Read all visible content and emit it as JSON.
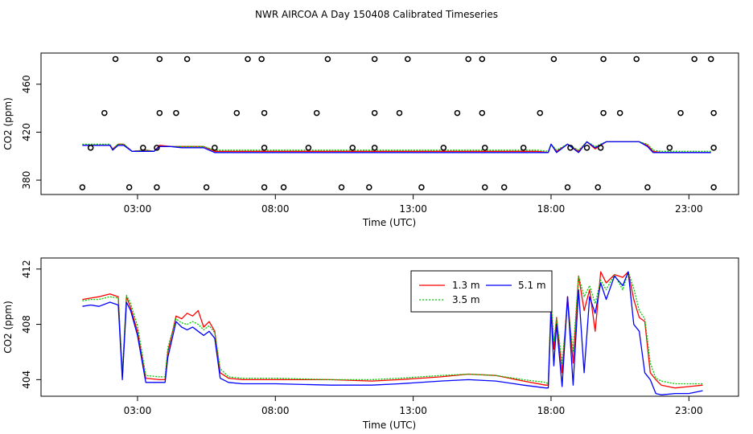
{
  "title": "NWR AIRCOA A  Day 150408  Calibrated Timeseries",
  "colors": {
    "red": "#ff0000",
    "green": "#00cc00",
    "blue": "#0000ff",
    "black": "#000000"
  },
  "chart_data": [
    {
      "type": "line",
      "title": "NWR AIRCOA A  Day 150408  Calibrated Timeseries",
      "xlabel": "Time (UTC)",
      "ylabel": "CO2 (ppm)",
      "xlim": [
        -0.5,
        24.8
      ],
      "ylim": [
        368,
        486
      ],
      "x_ticks": [
        3,
        8,
        13,
        18,
        23
      ],
      "x_tick_labels": [
        "03:00",
        "08:00",
        "13:00",
        "18:00",
        "23:00"
      ],
      "y_ticks": [
        380,
        420,
        460
      ],
      "y_tick_labels": [
        "380",
        "420",
        "460"
      ],
      "series": [
        {
          "color": "#ff0000",
          "x": [
            1,
            1.5,
            2,
            2.1,
            2.3,
            2.5,
            2.8,
            3.3,
            3.6,
            3.8,
            4.2,
            4.6,
            5,
            5.4,
            5.8,
            6.5,
            8,
            10,
            12,
            14,
            16,
            17.5,
            17.9,
            18,
            18.2,
            18.6,
            19,
            19.3,
            19.6,
            20,
            20.4,
            20.8,
            21.2,
            21.5,
            21.7,
            22,
            23.8
          ],
          "y": [
            409,
            409,
            409,
            406,
            410,
            410,
            404,
            405,
            404,
            409,
            408,
            408,
            408,
            408,
            404,
            404,
            404,
            404,
            404,
            404,
            404,
            404,
            403,
            410,
            404,
            410,
            404,
            412,
            406,
            412,
            412,
            412,
            412,
            409,
            404,
            403,
            403
          ]
        },
        {
          "color": "#00cc00",
          "x": [
            1,
            1.5,
            2,
            2.1,
            2.3,
            2.5,
            2.8,
            3.3,
            3.6,
            3.8,
            4.2,
            4.6,
            5,
            5.4,
            5.8,
            6.5,
            8,
            10,
            12,
            14,
            16,
            17.5,
            17.9,
            18,
            18.2,
            18.6,
            19,
            19.3,
            19.6,
            20,
            20.4,
            20.8,
            21.2,
            21.5,
            21.7,
            22,
            23.8
          ],
          "y": [
            410,
            410,
            410,
            406,
            410,
            410,
            404,
            405,
            404,
            408,
            408,
            408,
            408,
            408,
            405,
            405,
            405,
            405,
            405,
            405,
            405,
            405,
            404,
            410,
            405,
            410,
            405,
            412,
            408,
            412,
            412,
            412,
            412,
            410,
            405,
            404,
            404
          ]
        },
        {
          "color": "#0000ff",
          "x": [
            1,
            1.5,
            2,
            2.1,
            2.3,
            2.5,
            2.8,
            3.3,
            3.6,
            3.8,
            4.2,
            4.6,
            5,
            5.4,
            5.8,
            6.5,
            8,
            10,
            12,
            14,
            16,
            17.5,
            17.9,
            18,
            18.2,
            18.6,
            19,
            19.3,
            19.6,
            20,
            20.4,
            20.8,
            21.2,
            21.5,
            21.7,
            22,
            23.8
          ],
          "y": [
            409,
            409,
            409,
            405,
            409,
            409,
            404,
            404,
            404,
            408,
            408,
            407,
            407,
            407,
            403,
            403,
            403,
            403,
            403,
            403,
            403,
            403,
            403,
            410,
            403,
            410,
            403,
            412,
            407,
            412,
            412,
            412,
            412,
            408,
            403,
            403,
            403
          ]
        }
      ],
      "points": [
        {
          "x": [
            2.2,
            3.8,
            4.8,
            7,
            7.5,
            9.9,
            11.6,
            12.8,
            15,
            15.5,
            18.1,
            19.9,
            21.1,
            23.2,
            23.8
          ],
          "y": [
            481,
            481,
            481,
            481,
            481,
            481,
            481,
            481,
            481,
            481,
            481,
            481,
            481,
            481,
            481
          ]
        },
        {
          "x": [
            1.8,
            3.8,
            4.4,
            6.6,
            7.6,
            9.5,
            11.6,
            12.5,
            14.6,
            15.5,
            17.6,
            19.9,
            20.5,
            22.7,
            23.9
          ],
          "y": [
            436,
            436,
            436,
            436,
            436,
            436,
            436,
            436,
            436,
            436,
            436,
            436,
            436,
            436,
            436
          ]
        },
        {
          "x": [
            1.3,
            3.2,
            3.7,
            5.8,
            7.6,
            9.2,
            10.8,
            11.6,
            14.1,
            15.6,
            17,
            18.7,
            19.3,
            19.8,
            22.3,
            23.9
          ],
          "y": [
            407,
            407,
            407,
            407,
            407,
            407,
            407,
            407,
            407,
            407,
            407,
            407,
            407,
            407,
            407,
            407
          ]
        },
        {
          "x": [
            1,
            2.7,
            3.7,
            5.5,
            7.6,
            8.3,
            10.4,
            11.4,
            13.3,
            15.6,
            16.3,
            18.6,
            19.7,
            21.5,
            23.9
          ],
          "y": [
            374,
            374,
            374,
            374,
            374,
            374,
            374,
            374,
            374,
            374,
            374,
            374,
            374,
            374,
            374
          ]
        }
      ]
    },
    {
      "type": "line",
      "title": "",
      "xlabel": "Time (UTC)",
      "ylabel": "CO2 (ppm)",
      "xlim": [
        -0.5,
        24.8
      ],
      "ylim": [
        402.8,
        412.8
      ],
      "x_ticks": [
        3,
        8,
        13,
        18,
        23
      ],
      "x_tick_labels": [
        "03:00",
        "08:00",
        "13:00",
        "18:00",
        "23:00"
      ],
      "y_ticks": [
        404,
        408,
        412
      ],
      "y_tick_labels": [
        "404",
        "408",
        "412"
      ],
      "legend_position": "top-right",
      "series": [
        {
          "name": "1.3 m",
          "color": "#ff0000",
          "x": [
            1,
            1.3,
            1.6,
            2,
            2.3,
            2.45,
            2.6,
            2.75,
            3,
            3.3,
            3.8,
            4,
            4.1,
            4.4,
            4.6,
            4.8,
            5,
            5.2,
            5.4,
            5.6,
            5.8,
            6,
            6.3,
            6.8,
            8,
            10,
            11.5,
            12.5,
            14,
            15,
            16,
            17,
            17.8,
            17.9,
            18,
            18.1,
            18.2,
            18.4,
            18.6,
            18.8,
            19,
            19.2,
            19.4,
            19.6,
            19.8,
            20,
            20.3,
            20.6,
            20.8,
            21,
            21.2,
            21.4,
            21.6,
            21.8,
            22,
            22.5,
            23,
            23.5
          ],
          "y": [
            409.8,
            409.9,
            410.0,
            410.2,
            410.0,
            404.2,
            410.0,
            409.2,
            407.5,
            404.1,
            404.0,
            404.0,
            406.0,
            408.6,
            408.4,
            408.8,
            408.6,
            409.0,
            407.8,
            408.2,
            407.5,
            404.5,
            404.1,
            404.0,
            404.0,
            404.0,
            403.9,
            404.0,
            404.2,
            404.4,
            404.3,
            403.9,
            403.6,
            403.6,
            409.5,
            406.2,
            408.5,
            404.5,
            410.0,
            405.2,
            411.5,
            409.0,
            410.5,
            407.5,
            411.8,
            411.0,
            411.6,
            411.4,
            411.8,
            409.8,
            408.5,
            408.2,
            404.5,
            404.0,
            403.6,
            403.4,
            403.5,
            403.6
          ]
        },
        {
          "name": "3.5 m",
          "color": "#00cc00",
          "x": [
            1,
            1.3,
            1.6,
            2,
            2.3,
            2.45,
            2.6,
            2.75,
            3,
            3.3,
            3.8,
            4,
            4.1,
            4.4,
            4.6,
            4.8,
            5,
            5.2,
            5.4,
            5.6,
            5.8,
            6,
            6.3,
            6.8,
            8,
            10,
            11.5,
            12.5,
            14,
            15,
            16,
            17,
            17.8,
            17.9,
            18,
            18.1,
            18.2,
            18.4,
            18.6,
            18.8,
            19,
            19.2,
            19.4,
            19.6,
            19.8,
            20,
            20.3,
            20.6,
            20.8,
            21,
            21.2,
            21.4,
            21.6,
            21.8,
            22,
            22.5,
            23,
            23.5
          ],
          "y": [
            409.7,
            409.8,
            409.8,
            410.0,
            409.9,
            404.5,
            410.1,
            409.5,
            407.9,
            404.3,
            404.2,
            404.2,
            406.3,
            408.4,
            408.1,
            408.0,
            408.2,
            408.0,
            407.6,
            407.9,
            407.4,
            404.8,
            404.2,
            404.1,
            404.1,
            404.0,
            404.0,
            404.1,
            404.3,
            404.4,
            404.3,
            404.0,
            403.8,
            403.7,
            409.8,
            406.8,
            408.4,
            405.2,
            409.5,
            406.0,
            411.5,
            410.0,
            410.8,
            409.5,
            411.2,
            410.5,
            411.6,
            410.5,
            411.8,
            410.6,
            409.0,
            408.4,
            405.2,
            404.1,
            403.9,
            403.7,
            403.7,
            403.7
          ]
        },
        {
          "name": "5.1 m",
          "color": "#0000ff",
          "x": [
            1,
            1.3,
            1.6,
            2,
            2.3,
            2.45,
            2.6,
            2.75,
            3,
            3.3,
            3.8,
            4,
            4.1,
            4.4,
            4.6,
            4.8,
            5,
            5.2,
            5.4,
            5.6,
            5.8,
            6,
            6.3,
            6.8,
            8,
            10,
            11.5,
            12.5,
            14,
            15,
            16,
            17,
            17.8,
            17.9,
            18,
            18.1,
            18.2,
            18.4,
            18.6,
            18.8,
            19,
            19.2,
            19.4,
            19.6,
            19.8,
            20,
            20.3,
            20.6,
            20.8,
            21,
            21.2,
            21.4,
            21.6,
            21.8,
            22,
            22.5,
            23,
            23.5
          ],
          "y": [
            409.3,
            409.4,
            409.3,
            409.6,
            409.4,
            404.0,
            409.6,
            409.0,
            407.2,
            403.8,
            403.8,
            403.8,
            405.6,
            408.2,
            407.8,
            407.6,
            407.8,
            407.5,
            407.2,
            407.5,
            407.0,
            404.1,
            403.8,
            403.7,
            403.7,
            403.6,
            403.6,
            403.7,
            403.9,
            404.0,
            403.9,
            403.6,
            403.4,
            403.4,
            409.0,
            405.0,
            408.0,
            403.5,
            410.0,
            403.6,
            410.5,
            404.5,
            410.0,
            408.8,
            411.0,
            409.8,
            411.5,
            410.8,
            411.8,
            408.0,
            407.5,
            404.5,
            404.0,
            403.0,
            402.9,
            403.0,
            403.0,
            403.2
          ]
        }
      ]
    }
  ]
}
